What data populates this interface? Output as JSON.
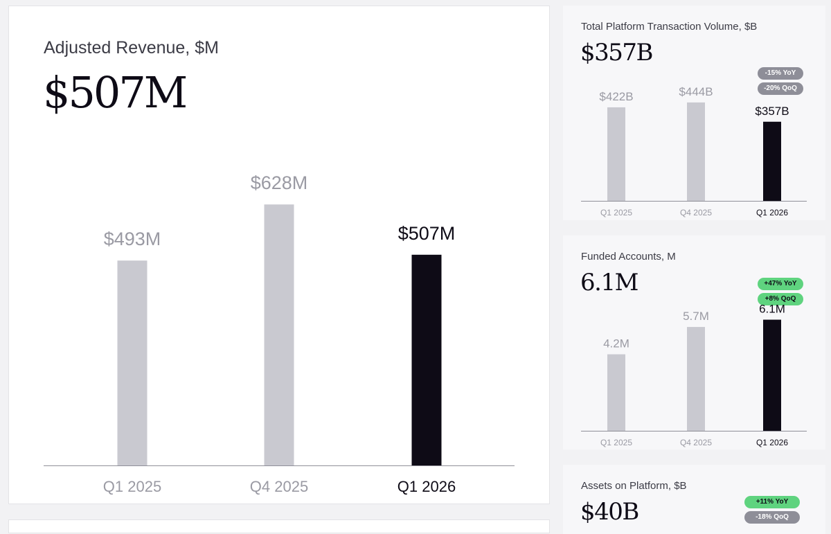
{
  "colors": {
    "bar_past": "#c9c9d0",
    "bar_current": "#0e0b16",
    "label_past": "#9a9aa3",
    "label_current": "#0e0b16",
    "badge_negative": "#8e8e98",
    "badge_positive": "#5fd37f"
  },
  "cards": {
    "revenue": {
      "title": "Adjusted Revenue, $M",
      "value": "$507M"
    },
    "volume": {
      "title": "Total Platform Transaction Volume, $B",
      "value": "$357B",
      "badges": {
        "yoy": "-15% YoY",
        "qoq": "-20% QoQ"
      }
    },
    "accounts": {
      "title": "Funded Accounts, M",
      "value": "6.1M",
      "badges": {
        "yoy": "+47% YoY",
        "qoq": "+8% QoQ"
      }
    },
    "assets": {
      "title": "Assets on Platform, $B",
      "value": "$40B",
      "badges": {
        "yoy": "+11% YoY",
        "qoq": "-18% QoQ"
      }
    }
  },
  "chart_data": [
    {
      "type": "bar",
      "title": "Adjusted Revenue, $M",
      "categories": [
        "Q1 2025",
        "Q4 2025",
        "Q1 2026"
      ],
      "values": [
        493,
        628,
        507
      ],
      "value_labels": [
        "$493M",
        "$628M",
        "$507M"
      ],
      "highlight_index": 2
    },
    {
      "type": "bar",
      "title": "Total Platform Transaction Volume, $B",
      "categories": [
        "Q1 2025",
        "Q4 2025",
        "Q1 2026"
      ],
      "values": [
        422,
        444,
        357
      ],
      "value_labels": [
        "$422B",
        "$444B",
        "$357B"
      ],
      "highlight_index": 2
    },
    {
      "type": "bar",
      "title": "Funded Accounts, M",
      "categories": [
        "Q1 2025",
        "Q4 2025",
        "Q1 2026"
      ],
      "values": [
        4.2,
        5.7,
        6.1
      ],
      "value_labels": [
        "4.2M",
        "5.7M",
        "6.1M"
      ],
      "highlight_index": 2
    }
  ]
}
